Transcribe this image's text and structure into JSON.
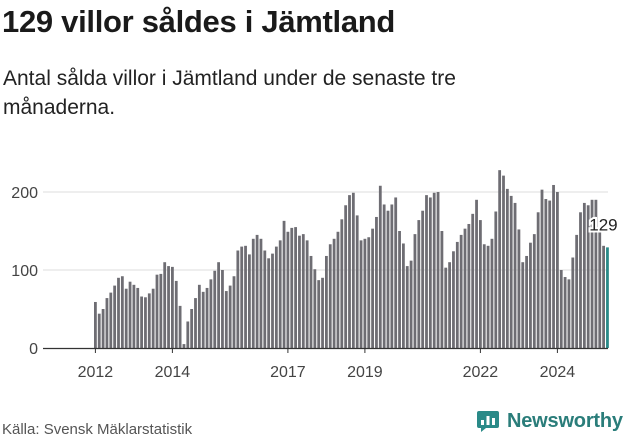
{
  "header": {
    "title": "129 villor såldes i Jämtland",
    "subtitle": "Antal sålda villor i Jämtland under de senaste tre månaderna."
  },
  "footer": {
    "source": "Källa: Svensk Mäklarstatistik",
    "brand": "Newsworthy"
  },
  "colors": {
    "bar": "#6e6d73",
    "highlight": "#2a8a88",
    "grid": "#dddddd",
    "brand": "#2a7d7a"
  },
  "icons": {
    "brand_logo": "bar-chart-bubble-icon"
  },
  "chart_data": {
    "type": "bar",
    "title": "Antal sålda villor i Jämtland",
    "xlabel": "",
    "ylabel": "",
    "ylim": [
      0,
      230
    ],
    "y_ticks": [
      0,
      100,
      200
    ],
    "x_ticks": [
      "2012",
      "2014",
      "2017",
      "2019",
      "2022",
      "2024"
    ],
    "x_tick_indices": [
      0,
      20,
      50,
      70,
      100,
      120
    ],
    "start": "2011-12",
    "interval": "monthly, 3-month rolling sum",
    "highlight_label": "129",
    "values": [
      59,
      44,
      50,
      64,
      71,
      80,
      90,
      92,
      76,
      85,
      81,
      77,
      66,
      65,
      70,
      76,
      94,
      95,
      110,
      105,
      104,
      86,
      54,
      5,
      34,
      50,
      64,
      81,
      72,
      77,
      88,
      99,
      110,
      100,
      73,
      80,
      92,
      125,
      130,
      131,
      120,
      140,
      145,
      140,
      125,
      115,
      121,
      130,
      138,
      163,
      149,
      154,
      155,
      144,
      146,
      138,
      118,
      101,
      87,
      90,
      118,
      133,
      140,
      149,
      165,
      183,
      196,
      199,
      170,
      138,
      140,
      142,
      153,
      168,
      208,
      184,
      176,
      184,
      193,
      150,
      134,
      105,
      112,
      146,
      164,
      176,
      196,
      193,
      199,
      200,
      150,
      103,
      110,
      124,
      136,
      145,
      153,
      159,
      172,
      190,
      164,
      133,
      131,
      140,
      175,
      228,
      221,
      204,
      195,
      186,
      152,
      110,
      118,
      135,
      146,
      174,
      203,
      191,
      189,
      209,
      200,
      100,
      91,
      88,
      116,
      145,
      174,
      186,
      183,
      190,
      190,
      150,
      131,
      129
    ]
  }
}
